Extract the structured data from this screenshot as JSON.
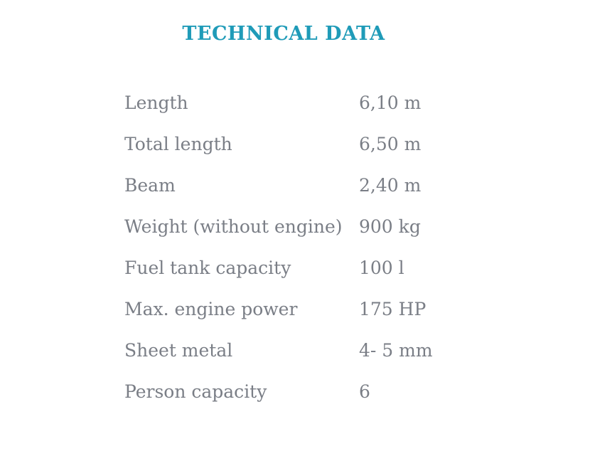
{
  "page": {
    "title": "TECHNICAL DATA"
  },
  "colors": {
    "title": "#1f9bb8",
    "text": "#7a7e86",
    "background": "#ffffff"
  },
  "specs": {
    "rows": [
      {
        "label": "Length",
        "value": "6,10 m"
      },
      {
        "label": "Total length",
        "value": "6,50 m"
      },
      {
        "label": "Beam",
        "value": "2,40 m"
      },
      {
        "label": "Weight (without engine)",
        "value": "900 kg"
      },
      {
        "label": "Fuel tank capacity",
        "value": "100 l"
      },
      {
        "label": "Max. engine power",
        "value": "175 HP"
      },
      {
        "label": "Sheet metal",
        "value": "4- 5 mm"
      },
      {
        "label": "Person capacity",
        "value": "6"
      }
    ]
  }
}
